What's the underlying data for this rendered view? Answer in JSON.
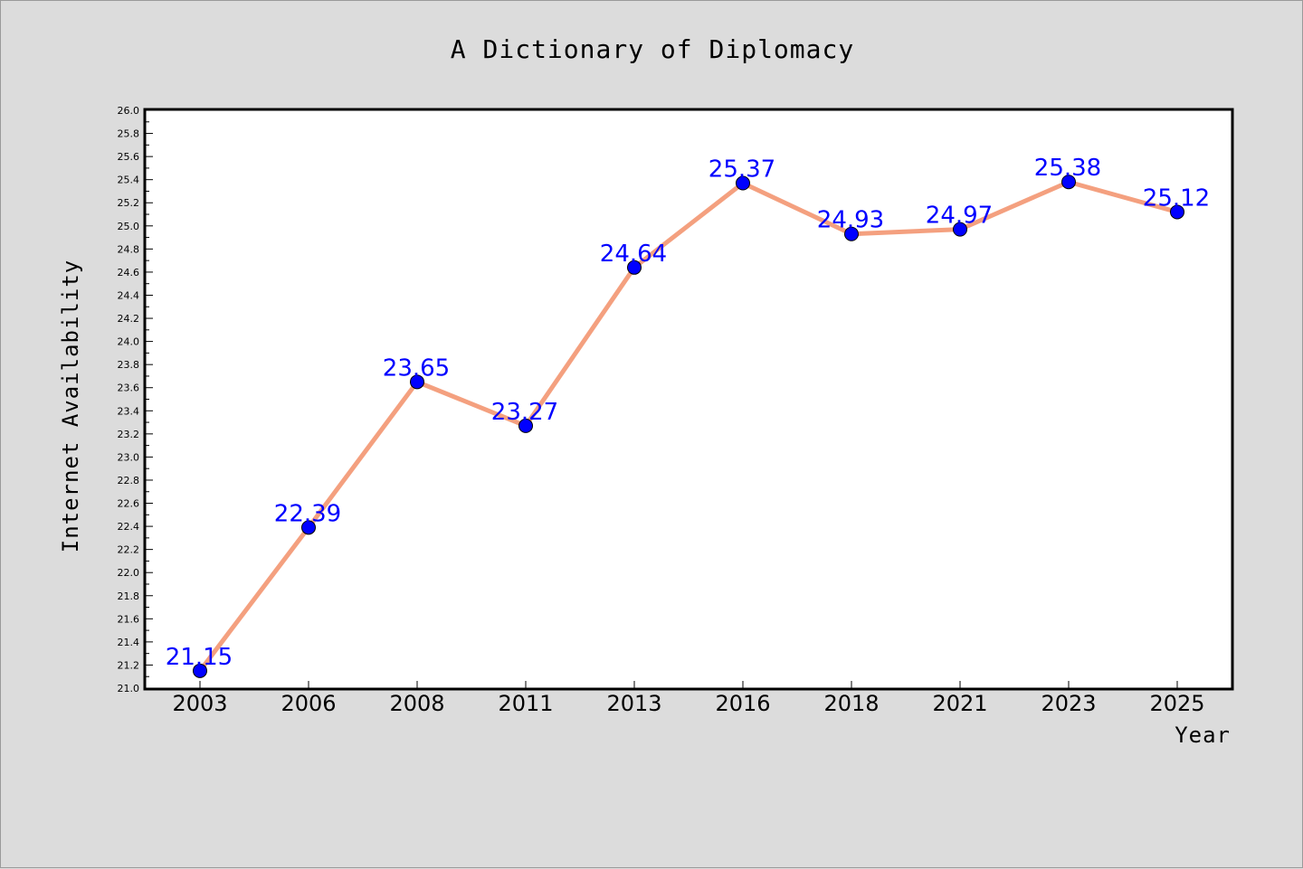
{
  "chart_data": {
    "type": "line",
    "title": "A Dictionary of Diplomacy",
    "xlabel": "Year",
    "ylabel": "Internet Availability",
    "x": [
      "2003",
      "2006",
      "2008",
      "2011",
      "2013",
      "2016",
      "2018",
      "2021",
      "2023",
      "2025"
    ],
    "series": [
      {
        "values": [
          21.15,
          22.39,
          23.65,
          23.27,
          24.64,
          25.37,
          24.93,
          24.97,
          25.38,
          25.12
        ],
        "labels": [
          "21.15",
          "22.39",
          "23.65",
          "23.27",
          "24.64",
          "25.37",
          "24.93",
          "24.97",
          "25.38",
          "25.12"
        ]
      }
    ],
    "ylim": [
      21.0,
      26.0
    ],
    "yticks": [
      "21.0",
      "21.2",
      "21.4",
      "21.6",
      "21.8",
      "22.0",
      "22.2",
      "22.4",
      "22.6",
      "22.8",
      "23.0",
      "23.2",
      "23.4",
      "23.6",
      "23.8",
      "24.0",
      "24.2",
      "24.4",
      "24.6",
      "24.8",
      "25.0",
      "25.2",
      "25.4",
      "25.6",
      "25.8",
      "26.0"
    ],
    "grid": false,
    "colors": {
      "line": "#f4a07f",
      "marker": "#0000ff",
      "data_label": "#0000ff",
      "page_background": "#dcdcdc",
      "plot_background": "#ffffff"
    }
  }
}
